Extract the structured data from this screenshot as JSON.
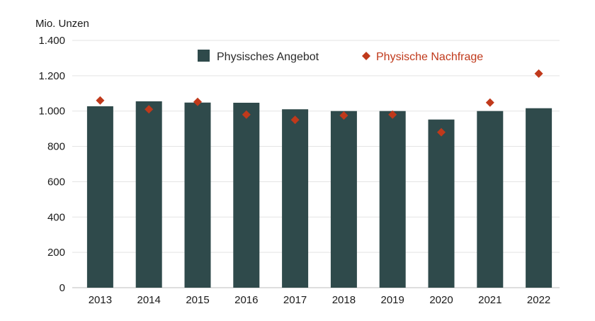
{
  "chart_data": {
    "type": "bar",
    "unit_label": "Mio. Unzen",
    "categories": [
      "2013",
      "2014",
      "2015",
      "2016",
      "2017",
      "2018",
      "2019",
      "2020",
      "2021",
      "2022"
    ],
    "series": [
      {
        "name": "Physisches Angebot",
        "kind": "bar",
        "color": "#2f4a4b",
        "values": [
          1027,
          1055,
          1048,
          1047,
          1010,
          1000,
          1000,
          952,
          1000,
          1016
        ]
      },
      {
        "name": "Physische Nachfrage",
        "kind": "marker",
        "marker": "diamond",
        "color": "#c0391b",
        "values": [
          1060,
          1010,
          1052,
          980,
          950,
          975,
          980,
          880,
          1048,
          1212
        ]
      }
    ],
    "ylim": [
      0,
      1400
    ],
    "yticks": [
      0,
      200,
      400,
      600,
      800,
      1000,
      1200,
      1400
    ],
    "ytick_labels": [
      "0",
      "200",
      "400",
      "600",
      "800",
      "1.000",
      "1.200",
      "1.400"
    ],
    "grid": "horizontal",
    "legend": "top-center"
  }
}
